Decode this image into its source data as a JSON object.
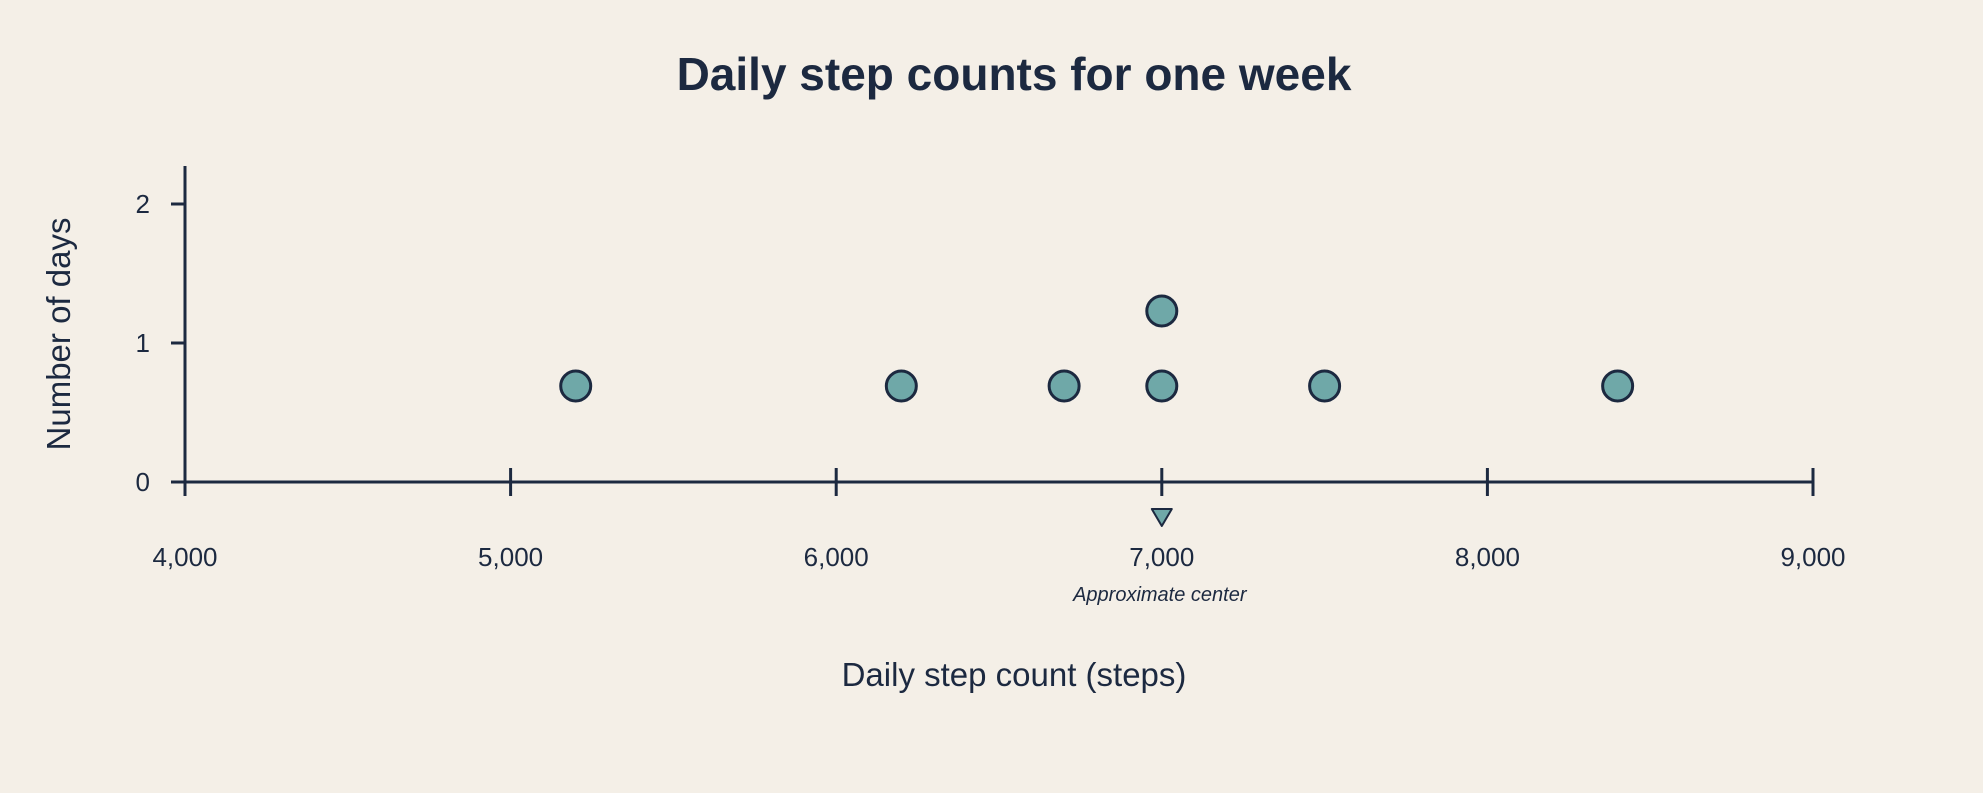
{
  "colors": {
    "background": "#f4efe7",
    "ink": "#1c2940",
    "marker_fill": "#6fa8a8",
    "marker_stroke": "#1c2940"
  },
  "chart_data": {
    "type": "scatter",
    "subtype": "dot-plot",
    "title": "Daily step counts for one week",
    "xlabel": "Daily step count (steps)",
    "ylabel": "Number of days",
    "xlim": [
      4000,
      9000
    ],
    "ylim": [
      0,
      2
    ],
    "x_ticks": [
      4000,
      5000,
      6000,
      7000,
      8000,
      9000
    ],
    "x_tick_labels": [
      "4,000",
      "5,000",
      "6,000",
      "7,000",
      "8,000",
      "9,000"
    ],
    "y_ticks": [
      0,
      1,
      2
    ],
    "y_tick_labels": [
      "0",
      "1",
      "2"
    ],
    "grid": false,
    "legend": "none",
    "points": [
      {
        "x": 5200,
        "stack": 1
      },
      {
        "x": 6200,
        "stack": 1
      },
      {
        "x": 6700,
        "stack": 1
      },
      {
        "x": 7000,
        "stack": 1
      },
      {
        "x": 7000,
        "stack": 2
      },
      {
        "x": 7500,
        "stack": 1
      },
      {
        "x": 8400,
        "stack": 1
      }
    ],
    "annotation": {
      "x": 7000,
      "marker": "triangle-down",
      "label": "Approximate center"
    }
  }
}
